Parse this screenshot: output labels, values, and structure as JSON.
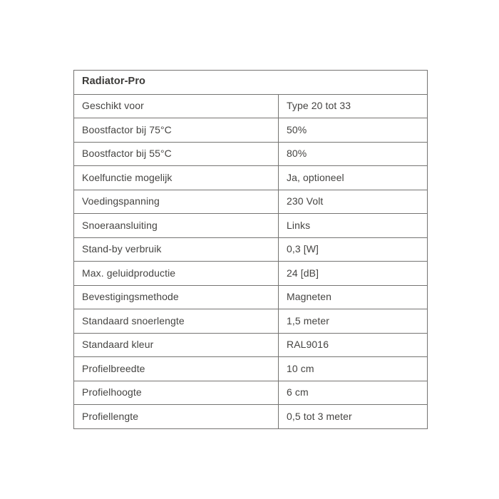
{
  "colors": {
    "background": "#ffffff",
    "border": "#757472",
    "text": "#454442",
    "title_text": "#3b3a38"
  },
  "table": {
    "title": "Radiator-Pro",
    "rows": [
      {
        "label": "Geschikt voor",
        "value": "Type 20 tot 33"
      },
      {
        "label": "Boostfactor bij 75°C",
        "value": "50%"
      },
      {
        "label": "Boostfactor bij 55°C",
        "value": "80%"
      },
      {
        "label": "Koelfunctie mogelijk",
        "value": "Ja, optioneel"
      },
      {
        "label": "Voedingspanning",
        "value": "230 Volt"
      },
      {
        "label": "Snoeraansluiting",
        "value": "Links"
      },
      {
        "label": "Stand-by verbruik",
        "value": "0,3 [W]"
      },
      {
        "label": "Max. geluidproductie",
        "value": "24 [dB]"
      },
      {
        "label": "Bevestigingsmethode",
        "value": "Magneten"
      },
      {
        "label": "Standaard snoerlengte",
        "value": "1,5 meter"
      },
      {
        "label": "Standaard kleur",
        "value": "RAL9016"
      },
      {
        "label": "Profielbreedte",
        "value": "10 cm"
      },
      {
        "label": "Profielhoogte",
        "value": "6 cm"
      },
      {
        "label": "Profiellengte",
        "value": "0,5 tot 3 meter"
      }
    ]
  }
}
